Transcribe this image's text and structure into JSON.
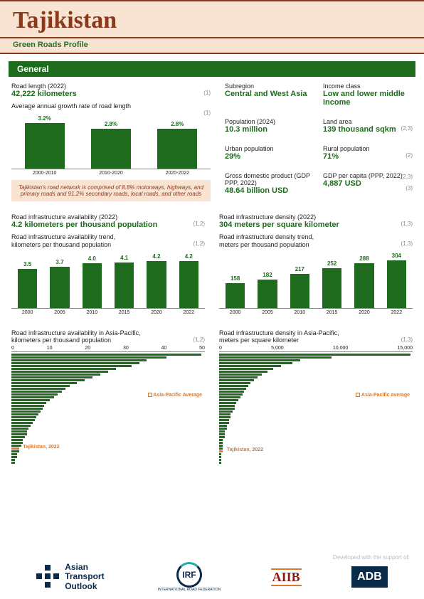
{
  "header": {
    "country": "Tajikistan",
    "subtitle": "Green Roads Profile"
  },
  "section": "General",
  "road_length": {
    "label": "Road length (2022)",
    "value": "42,222 kilometers",
    "ref": "(1)"
  },
  "growth_chart": {
    "title": "Average annual growth rate of road length",
    "ref": "(1)",
    "categories": [
      "2000-2010",
      "2010-2020",
      "2020-2022"
    ],
    "values": [
      3.2,
      2.8,
      2.8
    ],
    "display": [
      "3.2%",
      "2.8%",
      "2.8%"
    ],
    "ylim": 3.5,
    "bar_color": "#1e6b1e"
  },
  "note": "Tajikistan's road network is comprised of 8.8% motorways, highways, and primary roads and 91.2% secondary roads, local roads, and other roads",
  "facts": {
    "subregion": {
      "label": "Subregion",
      "value": "Central and West Asia"
    },
    "income": {
      "label": "Income class",
      "value": "Low and lower middle income"
    },
    "population": {
      "label": "Population (2024)",
      "value": "10.3 million"
    },
    "land": {
      "label": "Land area",
      "value": "139  thousand sqkm",
      "ref": "(2,3)"
    },
    "urban": {
      "label": "Urban population",
      "value": "29%"
    },
    "rural": {
      "label": "Rural population",
      "value": "71%",
      "ref": "(2)"
    },
    "gdp": {
      "label": "Gross domestic product (GDP PPP, 2022)",
      "value": "48.64 billion USD"
    },
    "gdppc": {
      "label": "GDP per capita (PPP, 2022)",
      "value": "4,887  USD",
      "ref": "(2,3)",
      "ref2": "(3)"
    }
  },
  "avail": {
    "label": "Road infrastructure availability (2022)",
    "value": "4.2 kilometers per thousand population",
    "ref": "(1,2)"
  },
  "density": {
    "label": "Road infrastructure density (2022)",
    "value": "304 meters per square kilometer",
    "ref": "(1,3)"
  },
  "avail_trend": {
    "title": "Road infrastructure availability trend,\nkilometers per thousand population",
    "ref": "(1,2)",
    "categories": [
      "2000",
      "2005",
      "2010",
      "2015",
      "2020",
      "2022"
    ],
    "values": [
      3.5,
      3.7,
      4.0,
      4.1,
      4.2,
      4.2
    ],
    "display": [
      "3.5",
      "3.7",
      "4.0",
      "4.1",
      "4.2",
      "4.2"
    ],
    "ylim": 4.5
  },
  "density_trend": {
    "title": "Road infrastructure density trend,\nmeters per thousand population",
    "ref": "(1,3)",
    "categories": [
      "2000",
      "2005",
      "2010",
      "2015",
      "2020",
      "2022"
    ],
    "values": [
      158,
      182,
      217,
      252,
      288,
      304
    ],
    "display": [
      "158",
      "182",
      "217",
      "252",
      "288",
      "304"
    ],
    "ylim": 320
  },
  "avail_ap": {
    "title": "Road infrastructure availability in Asia-Pacific,\nkilometers per thousand population",
    "ref": "(1,2)",
    "ticks": [
      "0",
      "10",
      "20",
      "30",
      "40",
      "50"
    ],
    "bars": [
      98,
      80,
      70,
      66,
      62,
      54,
      50,
      46,
      42,
      38,
      34,
      30,
      28,
      26,
      24,
      22,
      20,
      18,
      17,
      16,
      15,
      14,
      13,
      12,
      11,
      10,
      9,
      8,
      8,
      7,
      6,
      6,
      5,
      4,
      4,
      3,
      3,
      2,
      2
    ],
    "avg_label": "Asia-Pacific Average",
    "taj_label": "Tajikistan, 2022",
    "taj_index": 33
  },
  "density_ap": {
    "title": "Road infrastructure density in Asia-Pacific,\nmeters per square kilometer",
    "ref": "(1,3)",
    "ticks": [
      "0",
      "5,000",
      "10,000",
      "15,000"
    ],
    "bars": [
      99,
      58,
      42,
      38,
      32,
      28,
      25,
      22,
      20,
      18,
      16,
      15,
      14,
      13,
      12,
      11,
      10,
      9,
      8,
      8,
      7,
      6,
      6,
      5,
      5,
      4,
      4,
      3,
      3,
      3,
      2,
      2,
      2,
      2,
      2,
      1,
      1,
      1,
      1
    ],
    "avg_label": "Asia-Pacific average",
    "taj_label": "Tajikistan, 2022",
    "taj_index": 34
  },
  "footer": {
    "dev": "Developed with the support of:",
    "ato": "Asian Transport Outlook",
    "irf": "IRF",
    "irf_sub": "INTERNATIONAL ROAD FEDERATION",
    "aiib": "AIIB",
    "adb": "ADB"
  }
}
